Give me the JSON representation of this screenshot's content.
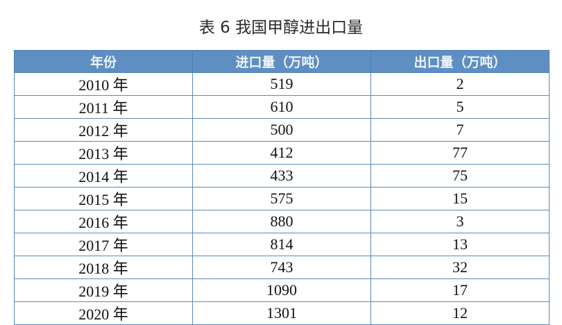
{
  "title": "表 6 我国甲醇进出口量",
  "header_color": "#5f8fc2",
  "columns": [
    "年份",
    "进口量（万吨）",
    "出口量（万吨）"
  ],
  "rows": [
    [
      "2010 年",
      "519",
      "2"
    ],
    [
      "2011 年",
      "610",
      "5"
    ],
    [
      "2012 年",
      "500",
      "7"
    ],
    [
      "2013 年",
      "412",
      "77"
    ],
    [
      "2014 年",
      "433",
      "75"
    ],
    [
      "2015 年",
      "575",
      "15"
    ],
    [
      "2016 年",
      "880",
      "3"
    ],
    [
      "2017 年",
      "814",
      "13"
    ],
    [
      "2018 年",
      "743",
      "32"
    ],
    [
      "2019 年",
      "1090",
      "17"
    ],
    [
      "2020 年",
      "1301",
      "12"
    ]
  ]
}
